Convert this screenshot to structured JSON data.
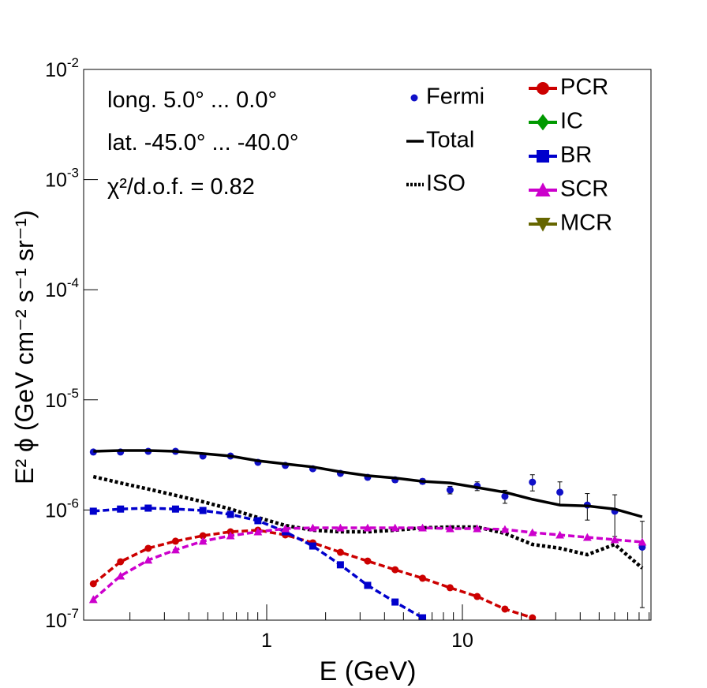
{
  "chart_data": {
    "type": "line",
    "annotations": [
      "long. 5.0° ... 0.0°",
      "lat. -45.0° ... -40.0°",
      "χ²/d.o.f. = 0.82"
    ],
    "xlabel": "E (GeV)",
    "ylabel": "E² ϕ (GeV cm⁻² s⁻¹ sr⁻¹)",
    "log_x": true,
    "log_y": true,
    "xlim": [
      0.116,
      92
    ],
    "ylim": [
      1e-07,
      0.01
    ],
    "xticks": [
      1,
      10
    ],
    "xminorticks": [
      0.2,
      0.3,
      0.4,
      0.5,
      0.6,
      0.7,
      0.8,
      0.9,
      2,
      3,
      4,
      5,
      6,
      7,
      8,
      9,
      20,
      30,
      40,
      50,
      60,
      70,
      80,
      90
    ],
    "yticks": [
      {
        "value": 0.01,
        "label": "10",
        "sup": "-2"
      },
      {
        "value": 0.001,
        "label": "10",
        "sup": "-3"
      },
      {
        "value": 0.0001,
        "label": "10",
        "sup": "-4"
      },
      {
        "value": 1e-05,
        "label": "10",
        "sup": "-5"
      },
      {
        "value": 1e-06,
        "label": "10",
        "sup": "-6"
      },
      {
        "value": 1e-07,
        "label": "10",
        "sup": "-7"
      }
    ],
    "x": [
      0.13,
      0.179,
      0.248,
      0.342,
      0.472,
      0.653,
      0.902,
      1.245,
      1.72,
      2.38,
      3.28,
      4.53,
      6.26,
      8.65,
      11.9,
      16.5,
      22.8,
      31.5,
      43.5,
      60.1,
      83.0
    ],
    "series": [
      {
        "name": "Fermi",
        "color": "#1010c8",
        "style": "points",
        "values": [
          3.36e-06,
          3.36e-06,
          3.41e-06,
          3.41e-06,
          3.09e-06,
          3.09e-06,
          2.71e-06,
          2.54e-06,
          2.37e-06,
          2.15e-06,
          1.98e-06,
          1.88e-06,
          1.82e-06,
          1.52e-06,
          1.65e-06,
          1.33e-06,
          1.79e-06,
          1.45e-06,
          1.11e-06,
          9.75e-07,
          4.6e-07
        ],
        "errors": [
          8e-08,
          8e-08,
          8e-08,
          8e-08,
          8e-08,
          8e-08,
          8e-08,
          8e-08,
          8e-08,
          1e-07,
          1e-07,
          1e-07,
          1e-07,
          1.2e-07,
          1.5e-07,
          1.8e-07,
          3e-07,
          3.5e-07,
          3e-07,
          4e-07,
          3.3e-07
        ]
      },
      {
        "name": "Total",
        "color": "#000000",
        "style": "solid",
        "values": [
          3.41e-06,
          3.47e-06,
          3.47e-06,
          3.41e-06,
          3.25e-06,
          3.09e-06,
          2.8e-06,
          2.62e-06,
          2.46e-06,
          2.22e-06,
          2.05e-06,
          1.95e-06,
          1.82e-06,
          1.76e-06,
          1.6e-06,
          1.45e-06,
          1.25e-06,
          1.11e-06,
          1.09e-06,
          1.02e-06,
          8.68e-07
        ]
      },
      {
        "name": "ISO",
        "color": "#000000",
        "style": "dotted",
        "values": [
          2.01e-06,
          1.76e-06,
          1.55e-06,
          1.36e-06,
          1.19e-06,
          1.02e-06,
          8.53e-07,
          7.24e-07,
          6.56e-07,
          6.34e-07,
          6.34e-07,
          6.56e-07,
          6.89e-07,
          7e-07,
          7e-07,
          6.14e-07,
          4.87e-07,
          4.49e-07,
          3.93e-07,
          4.87e-07,
          2.97e-07
        ]
      },
      {
        "name": "PCR",
        "color": "#cc0000",
        "style": "dashed",
        "marker": "circle",
        "values": [
          2.14e-07,
          3.39e-07,
          4.49e-07,
          5.21e-07,
          5.84e-07,
          6.34e-07,
          6.56e-07,
          5.94e-07,
          5.04e-07,
          4.13e-07,
          3.44e-07,
          2.87e-07,
          2.4e-07,
          1.97e-07,
          1.64e-07,
          1.26e-07,
          1.05e-07,
          null,
          null,
          null,
          null
        ]
      },
      {
        "name": "IC",
        "color": "#009900",
        "style": "dashed",
        "marker": "diamond",
        "values": [
          null,
          null,
          null,
          null,
          null,
          null,
          null,
          null,
          null,
          null,
          null,
          null,
          null,
          null,
          null,
          null,
          null,
          null,
          null,
          null,
          null
        ]
      },
      {
        "name": "BR",
        "color": "#0000cc",
        "style": "dashed",
        "marker": "square",
        "values": [
          9.75e-07,
          1.02e-06,
          1.04e-06,
          1.02e-06,
          9.9e-07,
          9.12e-07,
          8e-07,
          6.34e-07,
          4.71e-07,
          3.18e-07,
          2.07e-07,
          1.46e-07,
          1.05e-07,
          null,
          null,
          null,
          null,
          null,
          null,
          null,
          null
        ]
      },
      {
        "name": "SCR",
        "color": "#cc00cc",
        "style": "dashed",
        "marker": "triangle",
        "values": [
          1.54e-07,
          2.52e-07,
          3.51e-07,
          4.35e-07,
          5.21e-07,
          5.84e-07,
          6.34e-07,
          6.78e-07,
          6.89e-07,
          6.89e-07,
          6.89e-07,
          6.89e-07,
          6.89e-07,
          6.78e-07,
          6.78e-07,
          6.67e-07,
          6.24e-07,
          5.94e-07,
          5.65e-07,
          5.38e-07,
          5.12e-07
        ]
      },
      {
        "name": "MCR",
        "color": "#666600",
        "style": "dashed",
        "marker": "triangle-down",
        "values": [
          null,
          null,
          null,
          null,
          null,
          null,
          null,
          null,
          null,
          null,
          null,
          null,
          null,
          null,
          null,
          null,
          null,
          null,
          null,
          null,
          null
        ]
      }
    ]
  }
}
